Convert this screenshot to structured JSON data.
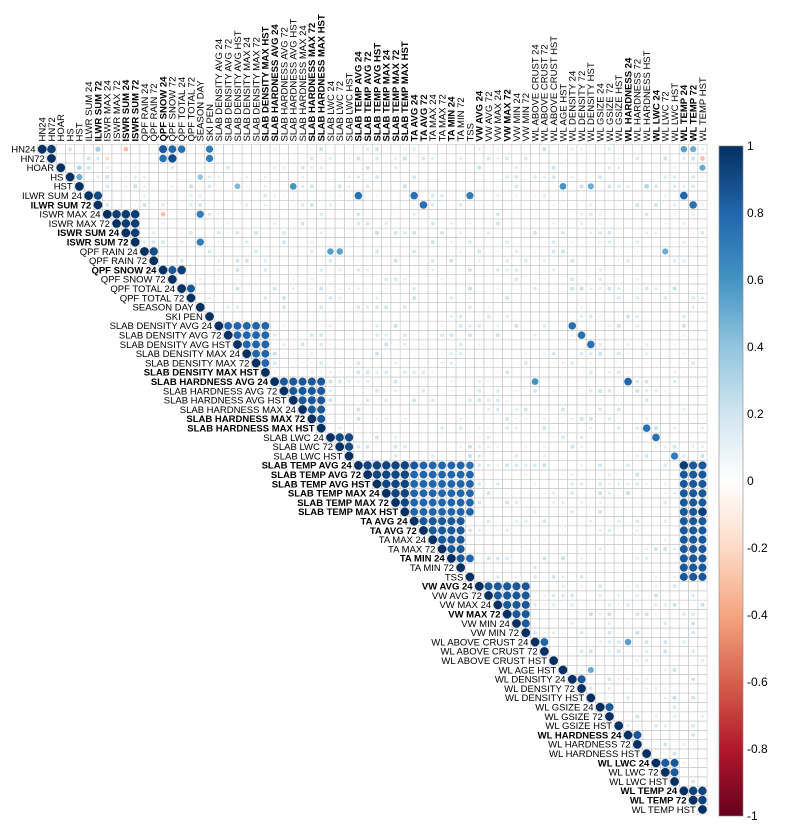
{
  "chart_data": {
    "type": "heatmap",
    "subtype": "upper-triangle correlation matrix (circles sized and colored by correlation)",
    "title": "",
    "variables": [
      {
        "label": "HN24",
        "bold": false
      },
      {
        "label": "HN72",
        "bold": false
      },
      {
        "label": "HOAR",
        "bold": false
      },
      {
        "label": "HS",
        "bold": false
      },
      {
        "label": "HST",
        "bold": false
      },
      {
        "label": "ILWR SUM 24",
        "bold": false
      },
      {
        "label": "ILWR SUM 72",
        "bold": true
      },
      {
        "label": "ISWR MAX 24",
        "bold": false
      },
      {
        "label": "ISWR MAX 72",
        "bold": false
      },
      {
        "label": "ISWR SUM 24",
        "bold": true
      },
      {
        "label": "ISWR SUM 72",
        "bold": true
      },
      {
        "label": "QPF RAIN 24",
        "bold": false
      },
      {
        "label": "QPF RAIN 72",
        "bold": false
      },
      {
        "label": "QPF SNOW 24",
        "bold": true
      },
      {
        "label": "QPF SNOW 72",
        "bold": false
      },
      {
        "label": "QPF TOTAL 24",
        "bold": false
      },
      {
        "label": "QPF TOTAL 72",
        "bold": false
      },
      {
        "label": "SEASON DAY",
        "bold": false
      },
      {
        "label": "SKI PEN",
        "bold": false
      },
      {
        "label": "SLAB DENSITY AVG 24",
        "bold": false
      },
      {
        "label": "SLAB DENSITY AVG 72",
        "bold": false
      },
      {
        "label": "SLAB DENSITY AVG HST",
        "bold": false
      },
      {
        "label": "SLAB DENSITY MAX 24",
        "bold": false
      },
      {
        "label": "SLAB DENSITY MAX 72",
        "bold": false
      },
      {
        "label": "SLAB DENSITY MAX HST",
        "bold": true
      },
      {
        "label": "SLAB HARDNESS AVG 24",
        "bold": true
      },
      {
        "label": "SLAB HARDNESS AVG 72",
        "bold": false
      },
      {
        "label": "SLAB HARDNESS AVG HST",
        "bold": false
      },
      {
        "label": "SLAB HARDNESS MAX 24",
        "bold": false
      },
      {
        "label": "SLAB HARDNESS MAX 72",
        "bold": true
      },
      {
        "label": "SLAB HARDNESS MAX HST",
        "bold": true
      },
      {
        "label": "SLAB LWC 24",
        "bold": false
      },
      {
        "label": "SLAB LWC 72",
        "bold": false
      },
      {
        "label": "SLAB LWC HST",
        "bold": false
      },
      {
        "label": "SLAB TEMP AVG 24",
        "bold": true
      },
      {
        "label": "SLAB TEMP AVG 72",
        "bold": true
      },
      {
        "label": "SLAB TEMP AVG HST",
        "bold": true
      },
      {
        "label": "SLAB TEMP MAX 24",
        "bold": true
      },
      {
        "label": "SLAB TEMP MAX 72",
        "bold": true
      },
      {
        "label": "SLAB TEMP MAX HST",
        "bold": true
      },
      {
        "label": "TA AVG 24",
        "bold": true
      },
      {
        "label": "TA AVG 72",
        "bold": true
      },
      {
        "label": "TA MAX 24",
        "bold": false
      },
      {
        "label": "TA MAX 72",
        "bold": false
      },
      {
        "label": "TA MIN 24",
        "bold": true
      },
      {
        "label": "TA MIN 72",
        "bold": false
      },
      {
        "label": "TSS",
        "bold": false
      },
      {
        "label": "VW AVG 24",
        "bold": true
      },
      {
        "label": "VW AVG 72",
        "bold": false
      },
      {
        "label": "VW MAX 24",
        "bold": false
      },
      {
        "label": "VW MAX 72",
        "bold": true
      },
      {
        "label": "VW MIN 24",
        "bold": false
      },
      {
        "label": "VW MIN 72",
        "bold": false
      },
      {
        "label": "WL ABOVE CRUST 24",
        "bold": false
      },
      {
        "label": "WL ABOVE CRUST 72",
        "bold": false
      },
      {
        "label": "WL ABOVE CRUST HST",
        "bold": false
      },
      {
        "label": "WL AGE HST",
        "bold": false
      },
      {
        "label": "WL DENSITY 24",
        "bold": false
      },
      {
        "label": "WL DENSITY 72",
        "bold": false
      },
      {
        "label": "WL DENSITY HST",
        "bold": false
      },
      {
        "label": "WL GSIZE 24",
        "bold": false
      },
      {
        "label": "WL GSIZE 72",
        "bold": false
      },
      {
        "label": "WL GSIZE HST",
        "bold": false
      },
      {
        "label": "WL HARDNESS 24",
        "bold": true
      },
      {
        "label": "WL HARDNESS 72",
        "bold": false
      },
      {
        "label": "WL HARDNESS HST",
        "bold": false
      },
      {
        "label": "WL LWC 24",
        "bold": true
      },
      {
        "label": "WL LWC 72",
        "bold": false
      },
      {
        "label": "WL LWC HST",
        "bold": false
      },
      {
        "label": "WL TEMP 24",
        "bold": true
      },
      {
        "label": "WL TEMP 72",
        "bold": true
      },
      {
        "label": "WL TEMP HST",
        "bold": false
      }
    ],
    "notable_correlations": [
      {
        "a": "HN24",
        "b": "HN72",
        "r": 0.95
      },
      {
        "a": "HN24",
        "b": "HS",
        "r": 0.2
      },
      {
        "a": "HN24",
        "b": "ILWR SUM 72",
        "r": 0.35
      },
      {
        "a": "HN24",
        "b": "ISWR SUM 24",
        "r": -0.3
      },
      {
        "a": "HN24",
        "b": "QPF SNOW 24",
        "r": 0.85
      },
      {
        "a": "HN24",
        "b": "QPF SNOW 72",
        "r": 0.8
      },
      {
        "a": "HN24",
        "b": "QPF TOTAL 24",
        "r": 0.75
      },
      {
        "a": "HN24",
        "b": "SKI PEN",
        "r": 0.7
      },
      {
        "a": "HN24",
        "b": "WL TEMP 24",
        "r": 0.55
      },
      {
        "a": "HN24",
        "b": "WL TEMP 72",
        "r": 0.5
      },
      {
        "a": "HN72",
        "b": "ISWR MAX 24",
        "r": -0.2
      },
      {
        "a": "HN72",
        "b": "QPF SNOW 24",
        "r": 0.75
      },
      {
        "a": "HN72",
        "b": "QPF SNOW 72",
        "r": 0.9
      },
      {
        "a": "HN72",
        "b": "SKI PEN",
        "r": 0.7
      },
      {
        "a": "HN72",
        "b": "WL TEMP HST",
        "r": -0.3
      },
      {
        "a": "HOAR",
        "b": "HST",
        "r": 0.3
      },
      {
        "a": "HOAR",
        "b": "WL TEMP HST",
        "r": 0.5
      },
      {
        "a": "HS",
        "b": "HST",
        "r": 0.5
      },
      {
        "a": "HS",
        "b": "SEASON DAY",
        "r": 0.4
      },
      {
        "a": "HST",
        "b": "SLAB DENSITY AVG HST",
        "r": 0.45
      },
      {
        "a": "HST",
        "b": "SLAB HARDNESS AVG HST",
        "r": 0.6
      },
      {
        "a": "HST",
        "b": "WL AGE HST",
        "r": 0.6
      },
      {
        "a": "HST",
        "b": "WL DENSITY HST",
        "r": 0.5
      },
      {
        "a": "HST",
        "b": "WL HARDNESS HST",
        "r": 0.3
      },
      {
        "a": "ILWR SUM 24",
        "b": "ILWR SUM 72",
        "r": 0.9
      },
      {
        "a": "ILWR SUM 24",
        "b": "SLAB TEMP AVG 24",
        "r": 0.75
      },
      {
        "a": "ILWR SUM 24",
        "b": "TA AVG 24",
        "r": 0.75
      },
      {
        "a": "ILWR SUM 24",
        "b": "TSS",
        "r": 0.7
      },
      {
        "a": "ILWR SUM 24",
        "b": "WL TEMP 24",
        "r": 0.8
      },
      {
        "a": "ILWR SUM 72",
        "b": "TA AVG 72",
        "r": 0.75
      },
      {
        "a": "ILWR SUM 72",
        "b": "WL TEMP 72",
        "r": 0.75
      },
      {
        "a": "ISWR MAX 24",
        "b": "ISWR MAX 72",
        "r": 0.95
      },
      {
        "a": "ISWR MAX 24",
        "b": "ISWR SUM 24",
        "r": 0.95
      },
      {
        "a": "ISWR MAX 24",
        "b": "SEASON DAY",
        "r": 0.7
      },
      {
        "a": "ISWR MAX 24",
        "b": "QPF SNOW 24",
        "r": -0.3
      },
      {
        "a": "ISWR SUM 24",
        "b": "ISWR SUM 72",
        "r": 0.95
      },
      {
        "a": "ISWR SUM 72",
        "b": "SEASON DAY",
        "r": 0.7
      },
      {
        "a": "QPF RAIN 24",
        "b": "QPF RAIN 72",
        "r": 0.9
      },
      {
        "a": "QPF RAIN 24",
        "b": "SLAB LWC 24",
        "r": 0.55
      },
      {
        "a": "QPF RAIN 24",
        "b": "SLAB LWC 72",
        "r": 0.55
      },
      {
        "a": "QPF RAIN 24",
        "b": "WL LWC 72",
        "r": 0.5
      },
      {
        "a": "QPF SNOW 24",
        "b": "QPF SNOW 72",
        "r": 0.85
      },
      {
        "a": "QPF SNOW 24",
        "b": "QPF TOTAL 24",
        "r": 0.95
      },
      {
        "a": "QPF TOTAL 24",
        "b": "QPF TOTAL 72",
        "r": 0.85
      },
      {
        "a": "SLAB DENSITY AVG 24",
        "b": "SLAB DENSITY AVG 72",
        "r": 0.85
      },
      {
        "a": "SLAB DENSITY AVG 24",
        "b": "WL DENSITY 24",
        "r": 0.75
      },
      {
        "a": "SLAB DENSITY AVG 72",
        "b": "WL DENSITY 72",
        "r": 0.75
      },
      {
        "a": "SLAB DENSITY AVG HST",
        "b": "WL DENSITY HST",
        "r": 0.75
      },
      {
        "a": "SLAB HARDNESS AVG 24",
        "b": "SLAB HARDNESS AVG 72",
        "r": 0.85
      },
      {
        "a": "SLAB HARDNESS AVG 24",
        "b": "WL ABOVE CRUST 24",
        "r": 0.6
      },
      {
        "a": "SLAB HARDNESS AVG 24",
        "b": "WL HARDNESS 24",
        "r": 0.8
      },
      {
        "a": "SLAB HARDNESS MAX HST",
        "b": "WL HARDNESS HST",
        "r": 0.75
      },
      {
        "a": "SLAB LWC 24",
        "b": "SLAB LWC 72",
        "r": 0.9
      },
      {
        "a": "SLAB LWC 24",
        "b": "WL LWC 24",
        "r": 0.75
      },
      {
        "a": "SLAB LWC HST",
        "b": "WL LWC HST",
        "r": 0.7
      },
      {
        "a": "SLAB TEMP AVG 24",
        "b": "SLAB TEMP AVG 72",
        "r": 0.95
      },
      {
        "a": "SLAB TEMP AVG 24",
        "b": "TA AVG 24",
        "r": 0.85
      },
      {
        "a": "SLAB TEMP AVG 24",
        "b": "TSS",
        "r": 0.75
      },
      {
        "a": "SLAB TEMP AVG 24",
        "b": "WL TEMP 24",
        "r": 0.95
      },
      {
        "a": "SLAB TEMP MAX HST",
        "b": "WL TEMP HST",
        "r": 0.95
      },
      {
        "a": "TA AVG 24",
        "b": "TA AVG 72",
        "r": 0.9
      },
      {
        "a": "TA AVG 24",
        "b": "TA MAX 24",
        "r": 0.9
      },
      {
        "a": "TA AVG 24",
        "b": "TA MIN 24",
        "r": 0.9
      },
      {
        "a": "TA MIN 24",
        "b": "TSS",
        "r": 0.8
      },
      {
        "a": "TSS",
        "b": "WL TEMP 24",
        "r": 0.85
      },
      {
        "a": "VW AVG 24",
        "b": "VW AVG 72",
        "r": 0.85
      },
      {
        "a": "VW AVG 24",
        "b": "VW MAX 24",
        "r": 0.95
      },
      {
        "a": "VW AVG 24",
        "b": "VW MIN 24",
        "r": 0.8
      },
      {
        "a": "VW MAX 24",
        "b": "VW MAX 72",
        "r": 0.85
      },
      {
        "a": "WL ABOVE CRUST 24",
        "b": "WL ABOVE CRUST 72",
        "r": 0.8
      },
      {
        "a": "WL ABOVE CRUST 24",
        "b": "WL HARDNESS 24",
        "r": 0.55
      },
      {
        "a": "WL AGE HST",
        "b": "WL DENSITY HST",
        "r": 0.5
      },
      {
        "a": "WL DENSITY 24",
        "b": "WL DENSITY 72",
        "r": 0.85
      },
      {
        "a": "WL GSIZE 24",
        "b": "WL GSIZE 72",
        "r": 0.85
      },
      {
        "a": "WL HARDNESS 24",
        "b": "WL HARDNESS 72",
        "r": 0.85
      },
      {
        "a": "WL LWC 24",
        "b": "WL LWC 72",
        "r": 0.85
      },
      {
        "a": "WL TEMP 24",
        "b": "WL TEMP 72",
        "r": 0.95
      },
      {
        "a": "WL TEMP 72",
        "b": "WL TEMP HST",
        "r": 0.9
      }
    ],
    "colorbar": {
      "range": [
        -1,
        1
      ],
      "ticks": [
        1,
        0.8,
        0.6,
        0.4,
        0.2,
        0,
        -0.2,
        -0.4,
        -0.6,
        -0.8,
        -1
      ],
      "tick_labels": [
        "1",
        "0.8",
        "0.6",
        "0.4",
        "0.2",
        "0",
        "-0.2",
        "-0.4",
        "-0.6",
        "-0.8",
        "-1"
      ],
      "palette": [
        "#67001F",
        "#B2182B",
        "#D6604D",
        "#F4A582",
        "#FDDBC7",
        "#FFFFFF",
        "#D1E5F0",
        "#92C5DE",
        "#4393C3",
        "#2166AC",
        "#053061"
      ]
    },
    "grid": true,
    "legend": "right (vertical colorbar)"
  },
  "colors": {
    "grid_line": "#C8C8C8",
    "label_text": "#000000",
    "diagonal": "#053061"
  }
}
